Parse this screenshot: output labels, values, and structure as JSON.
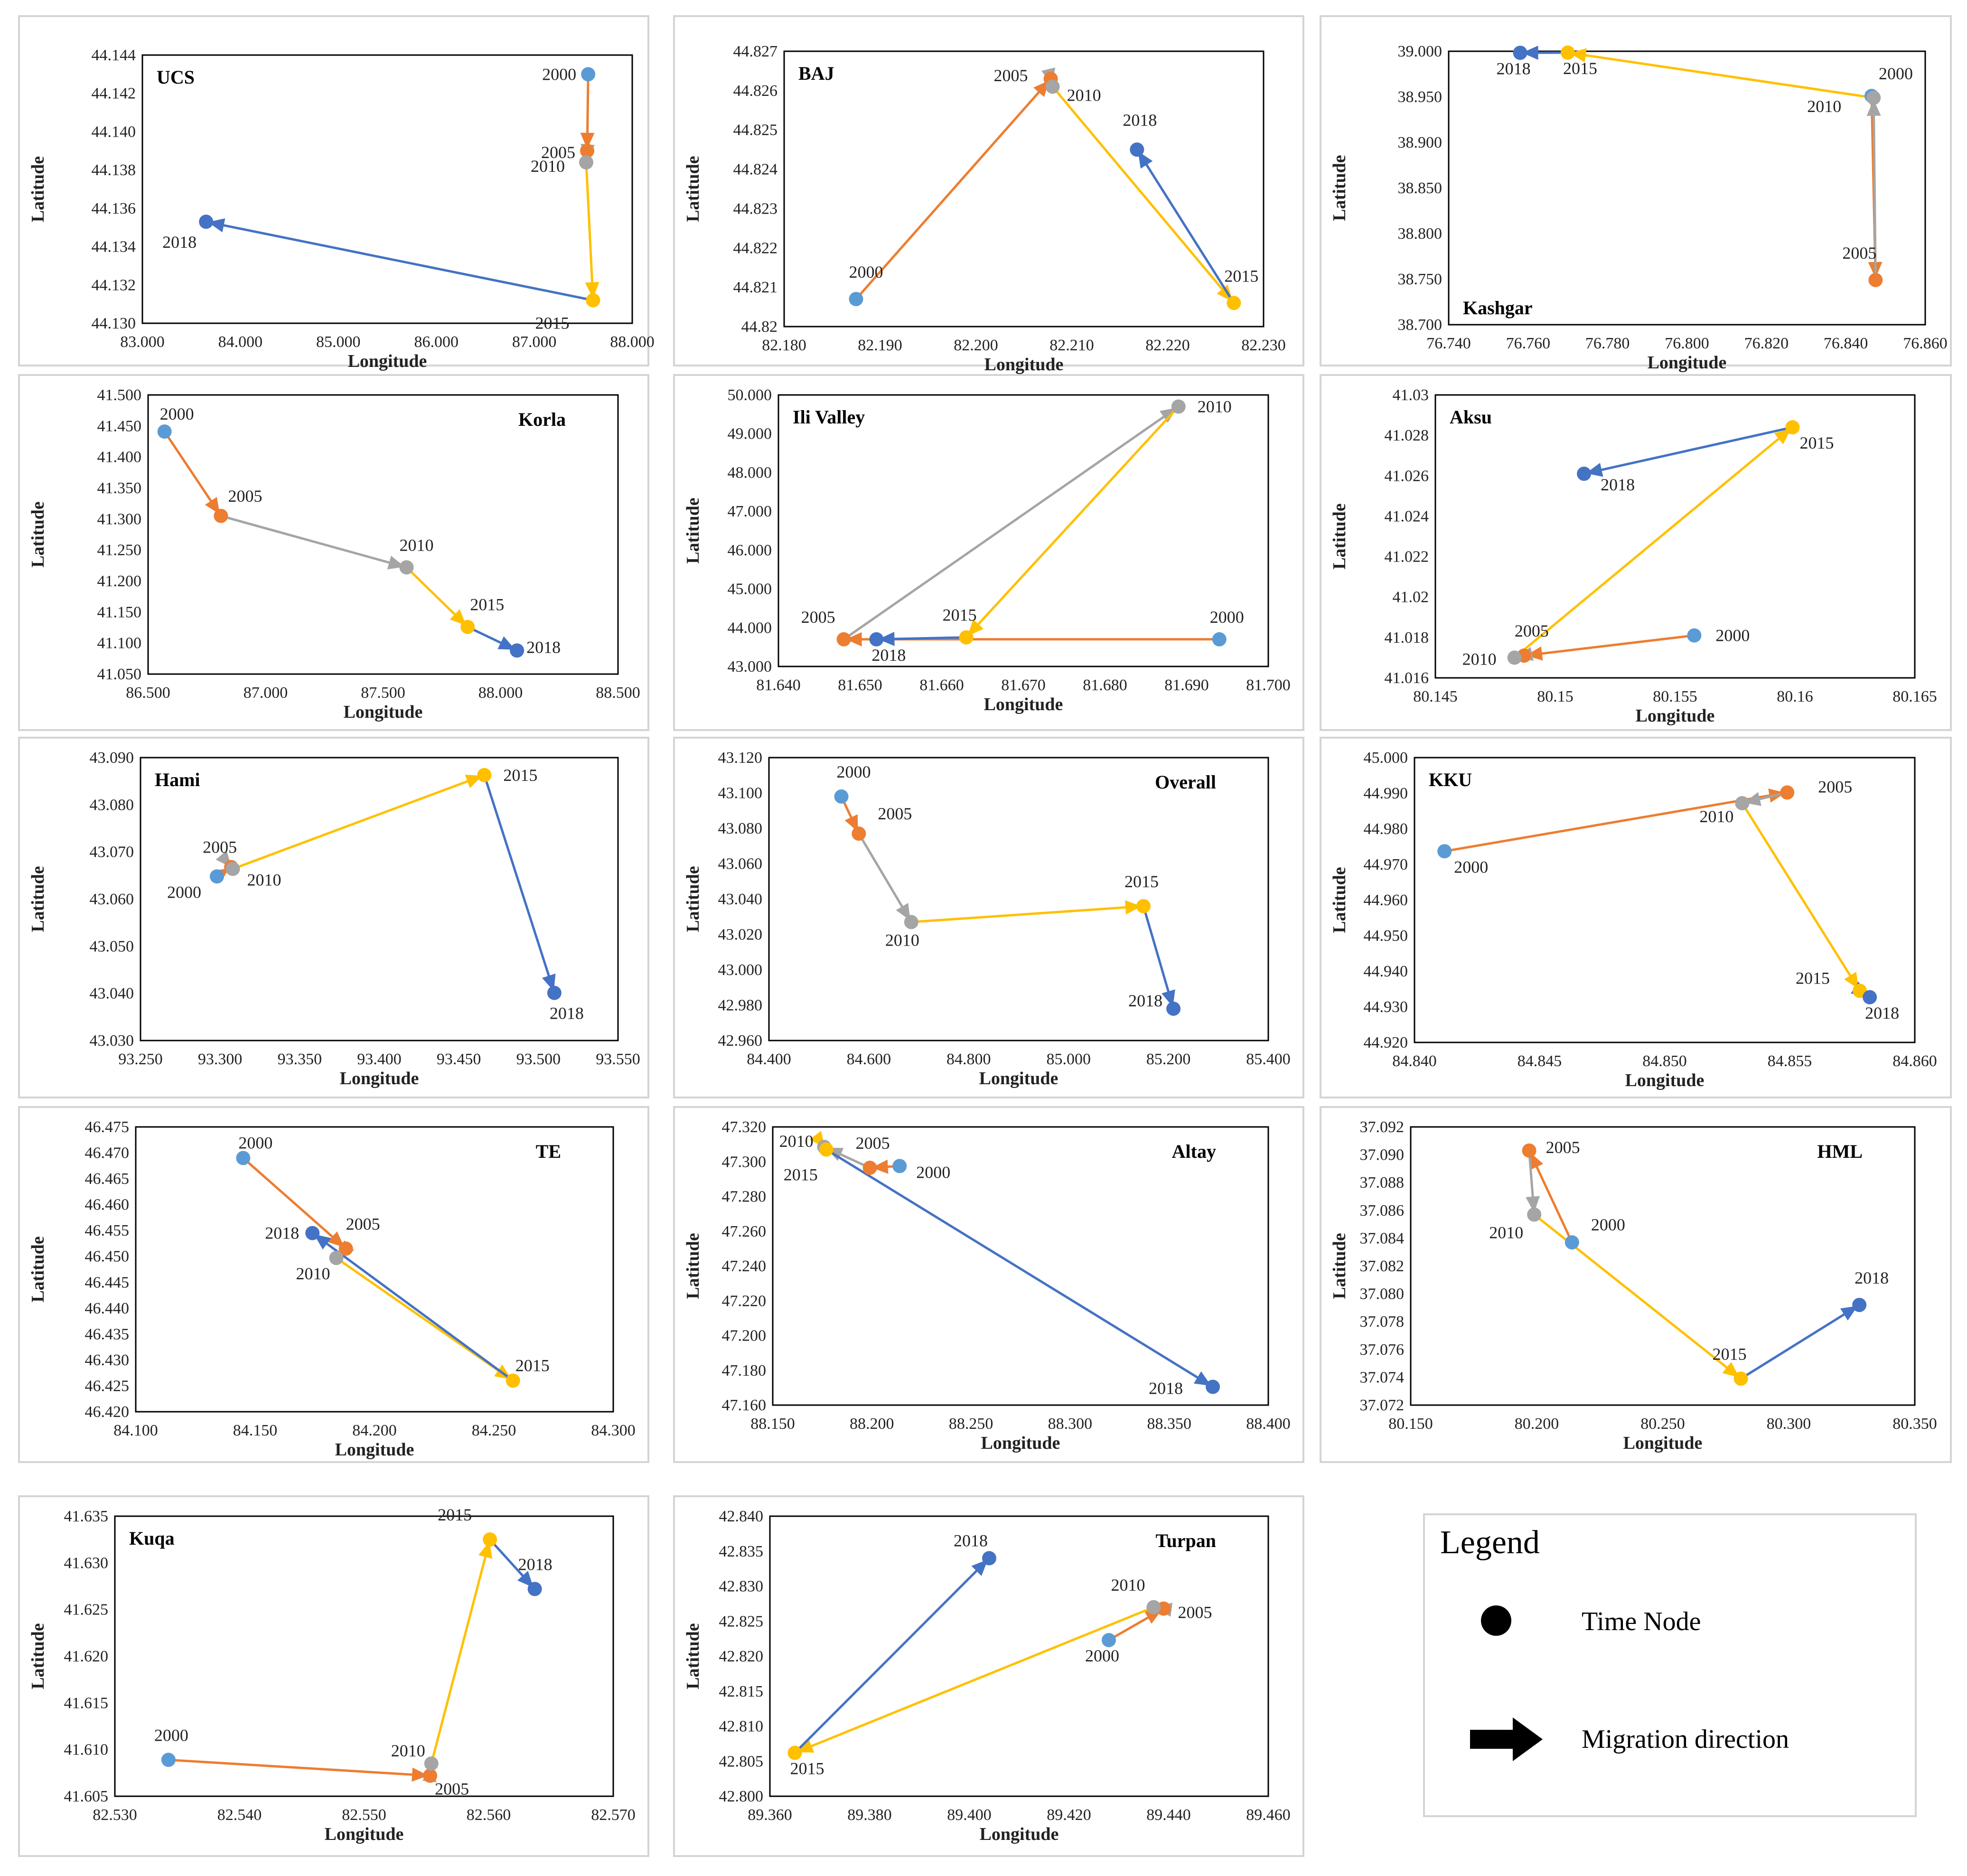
{
  "colors": {
    "2000": "#5b9bd5",
    "2005": "#ed7d31",
    "2010": "#a5a5a5",
    "2015": "#ffc000",
    "2018": "#4472c4"
  },
  "legend": {
    "title": "Legend",
    "node_label": "Time Node",
    "arrow_label": "Migration direction"
  },
  "chart_data": [
    {
      "type": "scatter",
      "title": "UCS",
      "xlabel": "Longitude",
      "ylabel": "Latitude",
      "xlim": [
        83.0,
        88.0
      ],
      "ylim": [
        44.13,
        44.144
      ],
      "xticks": [
        "83.000",
        "84.000",
        "85.000",
        "86.000",
        "87.000",
        "88.000"
      ],
      "yticks": [
        "44.130",
        "44.132",
        "44.134",
        "44.136",
        "44.138",
        "44.140",
        "44.142",
        "44.144"
      ],
      "points": [
        {
          "year": "2000",
          "x": 87.55,
          "y": 44.143
        },
        {
          "year": "2005",
          "x": 87.54,
          "y": 44.139
        },
        {
          "year": "2010",
          "x": 87.53,
          "y": 44.1384
        },
        {
          "year": "2015",
          "x": 87.6,
          "y": 44.1312
        },
        {
          "year": "2018",
          "x": 83.65,
          "y": 44.1353
        }
      ]
    },
    {
      "type": "scatter",
      "title": "BAJ",
      "xlabel": "Longitude",
      "ylabel": "Latitude",
      "xlim": [
        82.18,
        82.23
      ],
      "ylim": [
        44.82,
        44.827
      ],
      "xticks": [
        "82.180",
        "82.190",
        "82.200",
        "82.210",
        "82.220",
        "82.230"
      ],
      "yticks": [
        "44.82",
        "44.821",
        "44.822",
        "44.823",
        "44.824",
        "44.825",
        "44.826",
        "44.827"
      ],
      "points": [
        {
          "year": "2000",
          "x": 82.1875,
          "y": 44.8207
        },
        {
          "year": "2005",
          "x": 82.2078,
          "y": 44.8263
        },
        {
          "year": "2010",
          "x": 82.208,
          "y": 44.8261
        },
        {
          "year": "2015",
          "x": 82.2269,
          "y": 44.8206
        },
        {
          "year": "2018",
          "x": 82.2168,
          "y": 44.8245
        }
      ]
    },
    {
      "type": "scatter",
      "title": "Kashgar",
      "xlabel": "Longitude",
      "ylabel": "Latitude",
      "xlim": [
        76.74,
        76.86
      ],
      "ylim": [
        38.7,
        39.0
      ],
      "xticks": [
        "76.740",
        "76.760",
        "76.780",
        "76.800",
        "76.820",
        "76.840",
        "76.860"
      ],
      "yticks": [
        "38.700",
        "38.750",
        "38.800",
        "38.850",
        "38.900",
        "38.950",
        "39.000"
      ],
      "points": [
        {
          "year": "2000",
          "x": 76.8465,
          "y": 38.951
        },
        {
          "year": "2005",
          "x": 76.8475,
          "y": 38.749
        },
        {
          "year": "2010",
          "x": 76.847,
          "y": 38.949
        },
        {
          "year": "2015",
          "x": 76.77,
          "y": 38.9985
        },
        {
          "year": "2018",
          "x": 76.758,
          "y": 38.9983
        }
      ]
    },
    {
      "type": "scatter",
      "title": "Korla",
      "xlabel": "Longitude",
      "ylabel": "Latitude",
      "xlim": [
        86.5,
        88.5
      ],
      "ylim": [
        41.05,
        41.5
      ],
      "xticks": [
        "86.500",
        "87.000",
        "87.500",
        "88.000",
        "88.500"
      ],
      "yticks": [
        "41.050",
        "41.100",
        "41.150",
        "41.200",
        "41.250",
        "41.300",
        "41.350",
        "41.400",
        "41.450",
        "41.500"
      ],
      "points": [
        {
          "year": "2000",
          "x": 86.57,
          "y": 41.441
        },
        {
          "year": "2005",
          "x": 86.81,
          "y": 41.305
        },
        {
          "year": "2010",
          "x": 87.6,
          "y": 41.222
        },
        {
          "year": "2015",
          "x": 87.86,
          "y": 41.126
        },
        {
          "year": "2018",
          "x": 88.07,
          "y": 41.088
        }
      ]
    },
    {
      "type": "scatter",
      "title": "Ili Valley",
      "xlabel": "Longitude",
      "ylabel": "Latitude",
      "xlim": [
        81.64,
        81.7
      ],
      "ylim": [
        43.0,
        50.0
      ],
      "xticks": [
        "81.640",
        "81.650",
        "81.660",
        "81.670",
        "81.680",
        "81.690",
        "81.700"
      ],
      "yticks": [
        "43.000",
        "44.000",
        "45.000",
        "46.000",
        "47.000",
        "48.000",
        "49.000",
        "50.000"
      ],
      "points": [
        {
          "year": "2000",
          "x": 81.694,
          "y": 43.7
        },
        {
          "year": "2005",
          "x": 81.648,
          "y": 43.7
        },
        {
          "year": "2010",
          "x": 81.689,
          "y": 49.7
        },
        {
          "year": "2015",
          "x": 81.663,
          "y": 43.75
        },
        {
          "year": "2018",
          "x": 81.652,
          "y": 43.7
        }
      ]
    },
    {
      "type": "scatter",
      "title": "Aksu",
      "xlabel": "Longitude",
      "ylabel": "Latitude",
      "xlim": [
        80.145,
        80.165
      ],
      "ylim": [
        41.016,
        41.03
      ],
      "xticks": [
        "80.145",
        "80.15",
        "80.155",
        "80.16",
        "80.165"
      ],
      "yticks": [
        "41.016",
        "41.018",
        "41.02",
        "41.022",
        "41.024",
        "41.026",
        "41.028",
        "41.03"
      ],
      "points": [
        {
          "year": "2000",
          "x": 80.1558,
          "y": 41.0181
        },
        {
          "year": "2005",
          "x": 80.1487,
          "y": 41.0171
        },
        {
          "year": "2010",
          "x": 80.1483,
          "y": 41.017
        },
        {
          "year": "2015",
          "x": 80.1599,
          "y": 41.0284
        },
        {
          "year": "2018",
          "x": 80.1512,
          "y": 41.0261
        }
      ]
    },
    {
      "type": "scatter",
      "title": "Hami",
      "xlabel": "Longitude",
      "ylabel": "Latitude",
      "xlim": [
        93.25,
        93.55
      ],
      "ylim": [
        43.03,
        43.09
      ],
      "xticks": [
        "93.250",
        "93.300",
        "93.350",
        "93.400",
        "93.450",
        "93.500",
        "93.550"
      ],
      "yticks": [
        "43.030",
        "43.040",
        "43.050",
        "43.060",
        "43.070",
        "43.080",
        "43.090"
      ],
      "points": [
        {
          "year": "2000",
          "x": 93.298,
          "y": 43.0648
        },
        {
          "year": "2005",
          "x": 93.307,
          "y": 43.0668
        },
        {
          "year": "2010",
          "x": 93.308,
          "y": 43.0664
        },
        {
          "year": "2015",
          "x": 93.466,
          "y": 43.0863
        },
        {
          "year": "2018",
          "x": 93.51,
          "y": 43.0401
        }
      ]
    },
    {
      "type": "scatter",
      "title": "Overall",
      "xlabel": "Longitude",
      "ylabel": "Latitude",
      "xlim": [
        84.4,
        85.4
      ],
      "ylim": [
        42.96,
        43.12
      ],
      "xticks": [
        "84.400",
        "84.600",
        "84.800",
        "85.000",
        "85.200",
        "85.400"
      ],
      "yticks": [
        "42.960",
        "42.980",
        "43.000",
        "43.020",
        "43.040",
        "43.060",
        "43.080",
        "43.100",
        "43.120"
      ],
      "points": [
        {
          "year": "2000",
          "x": 84.545,
          "y": 43.098
        },
        {
          "year": "2005",
          "x": 84.58,
          "y": 43.077
        },
        {
          "year": "2010",
          "x": 84.685,
          "y": 43.027
        },
        {
          "year": "2015",
          "x": 85.15,
          "y": 43.036
        },
        {
          "year": "2018",
          "x": 85.21,
          "y": 42.978
        }
      ]
    },
    {
      "type": "scatter",
      "title": "KKU",
      "xlabel": "Longitude",
      "ylabel": "Latitude",
      "xlim": [
        84.84,
        84.86
      ],
      "ylim": [
        44.92,
        45.0
      ],
      "xticks": [
        "84.840",
        "84.845",
        "84.850",
        "84.855",
        "84.860"
      ],
      "yticks": [
        "44.920",
        "44.930",
        "44.940",
        "44.950",
        "44.960",
        "44.970",
        "44.980",
        "44.990",
        "45.000"
      ],
      "points": [
        {
          "year": "2000",
          "x": 84.8412,
          "y": 44.9737
        },
        {
          "year": "2005",
          "x": 84.8549,
          "y": 44.9902
        },
        {
          "year": "2010",
          "x": 84.8531,
          "y": 44.9872
        },
        {
          "year": "2015",
          "x": 84.8578,
          "y": 44.9345
        },
        {
          "year": "2018",
          "x": 84.8582,
          "y": 44.9327
        }
      ]
    },
    {
      "type": "scatter",
      "title": "TE",
      "xlabel": "Longitude",
      "ylabel": "Latitude",
      "xlim": [
        84.1,
        84.3
      ],
      "ylim": [
        46.42,
        46.475
      ],
      "xticks": [
        "84.100",
        "84.150",
        "84.200",
        "84.250",
        "84.300"
      ],
      "yticks": [
        "46.420",
        "46.425",
        "46.430",
        "46.435",
        "46.440",
        "46.445",
        "46.450",
        "46.455",
        "46.460",
        "46.465",
        "46.470",
        "46.475"
      ],
      "points": [
        {
          "year": "2000",
          "x": 84.145,
          "y": 46.469
        },
        {
          "year": "2005",
          "x": 84.188,
          "y": 46.4515
        },
        {
          "year": "2010",
          "x": 84.184,
          "y": 46.4497
        },
        {
          "year": "2015",
          "x": 84.258,
          "y": 46.426
        },
        {
          "year": "2018",
          "x": 84.174,
          "y": 46.4545
        }
      ]
    },
    {
      "type": "scatter",
      "title": "Altay",
      "xlabel": "Longitude",
      "ylabel": "Latitude",
      "xlim": [
        88.15,
        88.4
      ],
      "ylim": [
        47.16,
        47.32
      ],
      "xticks": [
        "88.150",
        "88.200",
        "88.250",
        "88.300",
        "88.350",
        "88.400"
      ],
      "yticks": [
        "47.160",
        "47.180",
        "47.200",
        "47.220",
        "47.240",
        "47.260",
        "47.280",
        "47.300",
        "47.320"
      ],
      "points": [
        {
          "year": "2000",
          "x": 88.214,
          "y": 47.2975
        },
        {
          "year": "2005",
          "x": 88.199,
          "y": 47.2965
        },
        {
          "year": "2010",
          "x": 88.176,
          "y": 47.3085
        },
        {
          "year": "2015",
          "x": 88.177,
          "y": 47.307
        },
        {
          "year": "2018",
          "x": 88.372,
          "y": 47.1705
        }
      ]
    },
    {
      "type": "scatter",
      "title": "HML",
      "xlabel": "Longitude",
      "ylabel": "Latitude",
      "xlim": [
        80.15,
        80.35
      ],
      "ylim": [
        37.072,
        37.092
      ],
      "xticks": [
        "80.150",
        "80.200",
        "80.250",
        "80.300",
        "80.350"
      ],
      "yticks": [
        "37.072",
        "37.074",
        "37.076",
        "37.078",
        "37.080",
        "37.082",
        "37.084",
        "37.086",
        "37.088",
        "37.090",
        "37.092"
      ],
      "points": [
        {
          "year": "2000",
          "x": 80.214,
          "y": 37.0837
        },
        {
          "year": "2005",
          "x": 80.197,
          "y": 37.0903
        },
        {
          "year": "2010",
          "x": 80.199,
          "y": 37.0857
        },
        {
          "year": "2015",
          "x": 80.281,
          "y": 37.0739
        },
        {
          "year": "2018",
          "x": 80.328,
          "y": 37.0792
        }
      ]
    },
    {
      "type": "scatter",
      "title": "Kuqa",
      "xlabel": "Longitude",
      "ylabel": "Latitude",
      "xlim": [
        82.53,
        82.57
      ],
      "ylim": [
        41.605,
        41.635
      ],
      "xticks": [
        "82.530",
        "82.540",
        "82.550",
        "82.560",
        "82.570"
      ],
      "yticks": [
        "41.605",
        "41.610",
        "41.615",
        "41.620",
        "41.625",
        "41.630",
        "41.635"
      ],
      "points": [
        {
          "year": "2000",
          "x": 82.5343,
          "y": 41.6089
        },
        {
          "year": "2005",
          "x": 82.5553,
          "y": 41.6072
        },
        {
          "year": "2010",
          "x": 82.5554,
          "y": 41.6085
        },
        {
          "year": "2015",
          "x": 82.5601,
          "y": 41.6325
        },
        {
          "year": "2018",
          "x": 82.5637,
          "y": 41.6272
        }
      ]
    },
    {
      "type": "scatter",
      "title": "Turpan",
      "xlabel": "Longitude",
      "ylabel": "Latitude",
      "xlim": [
        89.36,
        89.46
      ],
      "ylim": [
        42.8,
        42.84
      ],
      "xticks": [
        "89.360",
        "89.380",
        "89.400",
        "89.420",
        "89.440",
        "89.460"
      ],
      "yticks": [
        "42.800",
        "42.805",
        "42.810",
        "42.815",
        "42.820",
        "42.825",
        "42.830",
        "42.835",
        "42.840"
      ],
      "points": [
        {
          "year": "2000",
          "x": 89.428,
          "y": 42.8223
        },
        {
          "year": "2005",
          "x": 89.439,
          "y": 42.8268
        },
        {
          "year": "2010",
          "x": 89.437,
          "y": 42.827
        },
        {
          "year": "2015",
          "x": 89.365,
          "y": 42.8062
        },
        {
          "year": "2018",
          "x": 89.404,
          "y": 42.834
        }
      ]
    }
  ]
}
